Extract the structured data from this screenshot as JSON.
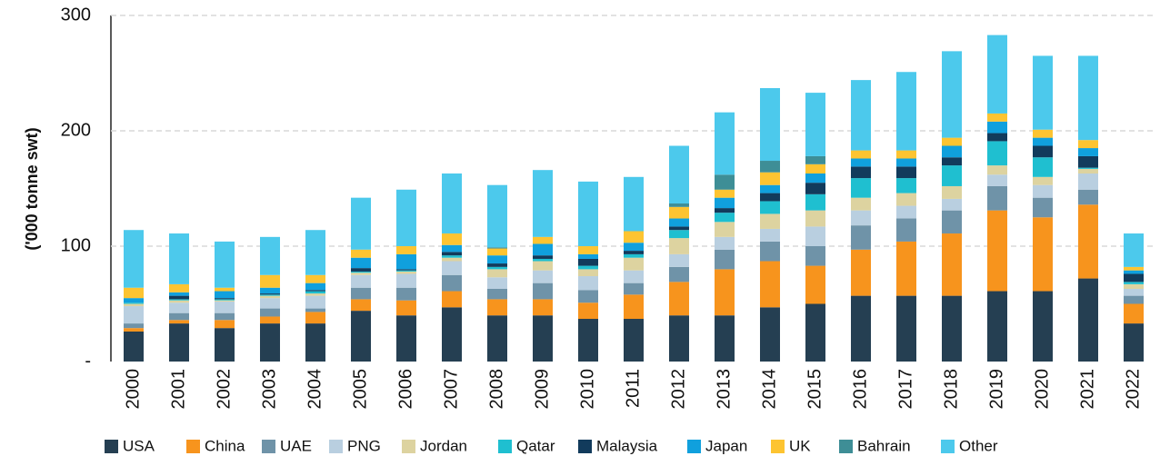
{
  "chart_data": {
    "type": "stacked_bar",
    "y_label": "('000 tonne swt)",
    "categories": [
      "2000",
      "2001",
      "2002",
      "2003",
      "2004",
      "2005",
      "2006",
      "2007",
      "2008",
      "2009",
      "2010",
      "2011",
      "2012",
      "2013",
      "2014",
      "2015",
      "2016",
      "2017",
      "2018",
      "2019",
      "2020",
      "2021",
      "2022"
    ],
    "ylim": [
      0,
      300
    ],
    "yticks": [
      {
        "value": 0,
        "label": "-"
      },
      100,
      200,
      300
    ],
    "grid": true,
    "legend": "bottom",
    "series": [
      {
        "name": "USA",
        "color": "#253f52",
        "values": [
          26,
          33,
          29,
          33,
          33,
          44,
          40,
          47,
          40,
          40,
          37,
          37,
          40,
          40,
          47,
          50,
          57,
          57,
          57,
          61,
          61,
          72,
          33
        ]
      },
      {
        "name": "China",
        "color": "#f7941d",
        "values": [
          3,
          3,
          7,
          6,
          10,
          10,
          13,
          14,
          14,
          14,
          14,
          21,
          29,
          40,
          40,
          33,
          40,
          47,
          54,
          70,
          64,
          64,
          17
        ]
      },
      {
        "name": "UAE",
        "color": "#6f93a8",
        "values": [
          4,
          6,
          6,
          7,
          3,
          10,
          11,
          14,
          9,
          14,
          11,
          10,
          13,
          17,
          17,
          17,
          21,
          20,
          20,
          21,
          17,
          13,
          7
        ]
      },
      {
        "name": "PNG",
        "color": "#b9cfe0",
        "values": [
          15,
          9,
          10,
          9,
          11,
          11,
          12,
          12,
          10,
          11,
          12,
          11,
          11,
          11,
          11,
          17,
          13,
          11,
          10,
          10,
          11,
          14,
          6
        ]
      },
      {
        "name": "Jordan",
        "color": "#ddd3a0",
        "values": [
          2,
          2,
          1,
          2,
          2,
          2,
          2,
          3,
          7,
          8,
          6,
          11,
          14,
          13,
          13,
          14,
          11,
          11,
          11,
          8,
          7,
          4,
          4
        ]
      },
      {
        "name": "Qatar",
        "color": "#1fbfd0",
        "values": [
          1,
          1,
          1,
          1,
          2,
          1,
          1,
          2,
          2,
          2,
          3,
          3,
          7,
          8,
          11,
          14,
          17,
          13,
          18,
          21,
          17,
          1,
          2
        ]
      },
      {
        "name": "Malaysia",
        "color": "#123b5c",
        "values": [
          0,
          3,
          1,
          1,
          1,
          3,
          1,
          3,
          3,
          3,
          6,
          3,
          3,
          4,
          7,
          10,
          10,
          10,
          7,
          7,
          10,
          10,
          7
        ]
      },
      {
        "name": "Japan",
        "color": "#10a0dd",
        "values": [
          4,
          3,
          6,
          5,
          6,
          9,
          13,
          6,
          7,
          10,
          4,
          7,
          7,
          9,
          7,
          8,
          7,
          7,
          10,
          10,
          7,
          7,
          3
        ]
      },
      {
        "name": "UK",
        "color": "#fdc431",
        "values": [
          9,
          7,
          3,
          11,
          7,
          7,
          7,
          10,
          6,
          6,
          7,
          10,
          10,
          7,
          11,
          8,
          7,
          7,
          7,
          7,
          7,
          7,
          3
        ]
      },
      {
        "name": "Bahrain",
        "color": "#3e8e96",
        "values": [
          0,
          0,
          0,
          0,
          0,
          0,
          0,
          0,
          1,
          0,
          0,
          0,
          3,
          13,
          10,
          7,
          0,
          0,
          0,
          0,
          0,
          0,
          0
        ]
      },
      {
        "name": "Other",
        "color": "#4cc9ec",
        "values": [
          50,
          44,
          40,
          33,
          39,
          45,
          49,
          52,
          54,
          58,
          56,
          47,
          50,
          54,
          63,
          55,
          61,
          68,
          75,
          68,
          64,
          73,
          29
        ]
      }
    ]
  }
}
